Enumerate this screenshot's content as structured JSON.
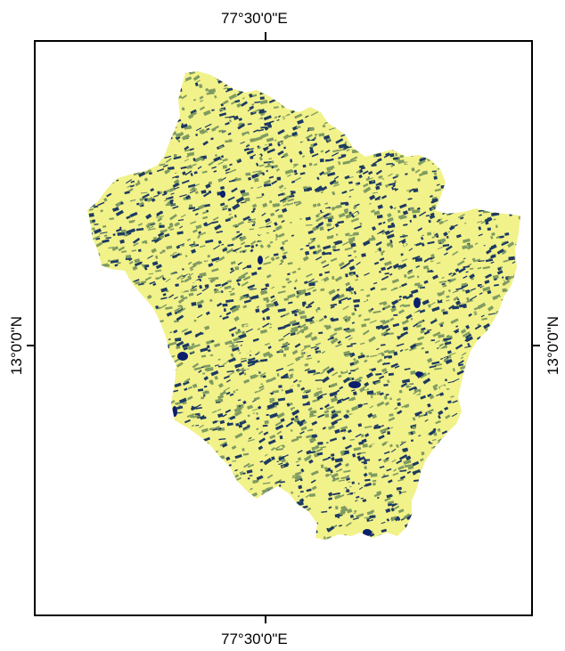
{
  "map": {
    "labels": {
      "top_lon": "77°30'0\"E",
      "bottom_lon": "77°30'0\"E",
      "left_lat": "13°0'0\"N",
      "right_lat": "13°0'0\"N"
    },
    "colors": {
      "light": "#f2f28a",
      "mid": "#7f9b62",
      "dark": "#1d3a62",
      "navy": "#0b1f6e"
    }
  }
}
